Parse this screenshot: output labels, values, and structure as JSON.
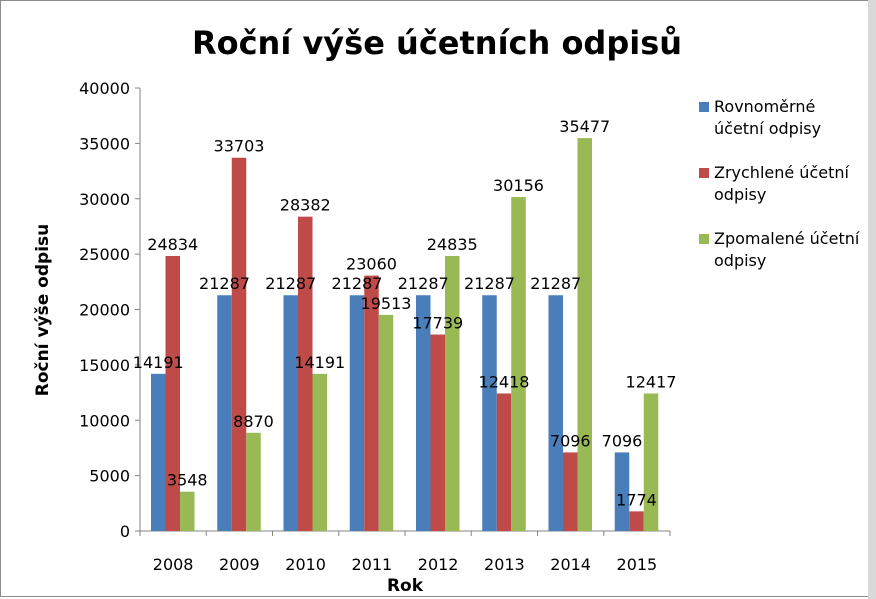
{
  "chart_data": {
    "type": "bar",
    "title": "Roční výše účetních odpisů",
    "xlabel": "Rok",
    "ylabel": "Roční výše odpisu",
    "categories": [
      "2008",
      "2009",
      "2010",
      "2011",
      "2012",
      "2013",
      "2014",
      "2015"
    ],
    "ylim": [
      0,
      40000
    ],
    "yticks": [
      0,
      5000,
      10000,
      15000,
      20000,
      25000,
      30000,
      35000,
      40000
    ],
    "grid": false,
    "legend_position": "right",
    "series": [
      {
        "name": "Rovnoměrné účetní odpisy",
        "legend_lines": [
          "Rovnoměrné",
          "účetní odpisy"
        ],
        "color": "#4a7ebb",
        "values": [
          14191,
          21287,
          21287,
          21287,
          21287,
          21287,
          21287,
          7096
        ]
      },
      {
        "name": "Zrychlené účetní odpisy",
        "legend_lines": [
          "Zrychlené účetní",
          "odpisy"
        ],
        "color": "#be4b48",
        "values": [
          24834,
          33703,
          28382,
          23060,
          17739,
          12418,
          7096,
          1774
        ]
      },
      {
        "name": "Zpomalené účetní odpisy",
        "legend_lines": [
          "Zpomalené účetní",
          "odpisy"
        ],
        "color": "#98b954",
        "values": [
          3548,
          8870,
          14191,
          19513,
          24835,
          30156,
          35477,
          12417
        ]
      }
    ]
  }
}
